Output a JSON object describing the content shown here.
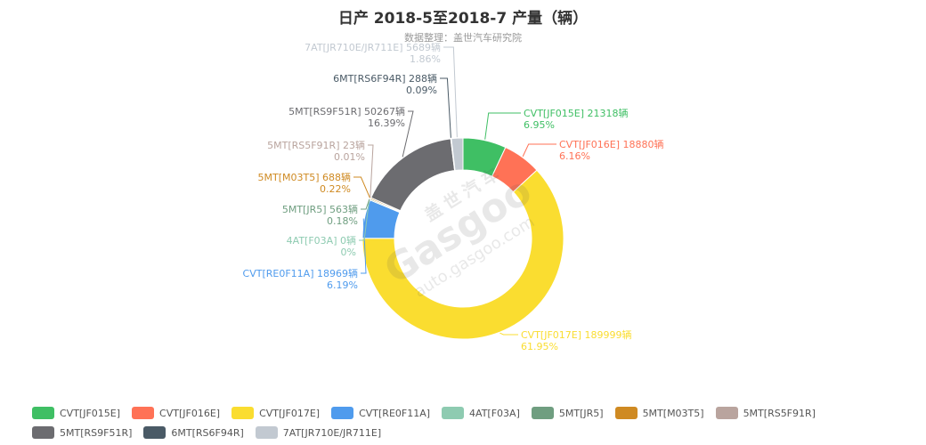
{
  "header": {
    "title": "日产 2018-5至2018-7 产量（辆）",
    "subtitle": "数据整理：盖世汽车研究院"
  },
  "watermark": {
    "brand_cn": "盖世汽车",
    "brand": "Gasgoo",
    "url": "auto.gasgoo.com"
  },
  "chart_data": {
    "type": "pie",
    "style": "donut",
    "unit": "辆",
    "legend_position": "bottom",
    "slices": [
      {
        "name": "CVT[JF015E]",
        "value": 21318,
        "label": "CVT[JF015E] 21318辆",
        "percent": "6.95%",
        "color": "#3fbf64"
      },
      {
        "name": "CVT[JF016E]",
        "value": 18880,
        "label": "CVT[JF016E] 18880辆",
        "percent": "6.16%",
        "color": "#ff7256"
      },
      {
        "name": "CVT[JF017E]",
        "value": 189999,
        "label": "CVT[JF017E] 189999辆",
        "percent": "61.95%",
        "color": "#fadd30"
      },
      {
        "name": "CVT[RE0F11A]",
        "value": 18969,
        "label": "CVT[RE0F11A] 18969辆",
        "percent": "6.19%",
        "color": "#4f9bed"
      },
      {
        "name": "4AT[F03A]",
        "value": 0,
        "label": "4AT[F03A] 0辆",
        "percent": "0%",
        "color": "#8ecbb1"
      },
      {
        "name": "5MT[JR5]",
        "value": 563,
        "label": "5MT[JR5] 563辆",
        "percent": "0.18%",
        "color": "#6f9e80"
      },
      {
        "name": "5MT[M03T5]",
        "value": 688,
        "label": "5MT[M03T5] 688辆",
        "percent": "0.22%",
        "color": "#cf8a22"
      },
      {
        "name": "5MT[RS5F91R]",
        "value": 23,
        "label": "5MT[RS5F91R] 23辆",
        "percent": "0.01%",
        "color": "#b9a49e"
      },
      {
        "name": "5MT[RS9F51R]",
        "value": 50267,
        "label": "5MT[RS9F51R] 50267辆",
        "percent": "16.39%",
        "color": "#6c6c70"
      },
      {
        "name": "6MT[RS6F94R]",
        "value": 288,
        "label": "6MT[RS6F94R] 288辆",
        "percent": "0.09%",
        "color": "#4a5a66"
      },
      {
        "name": "7AT[JR710E/JR711E]",
        "value": 5689,
        "label": "7AT[JR710E/JR711E] 5689辆",
        "percent": "1.86%",
        "color": "#c2c9d1"
      }
    ]
  }
}
